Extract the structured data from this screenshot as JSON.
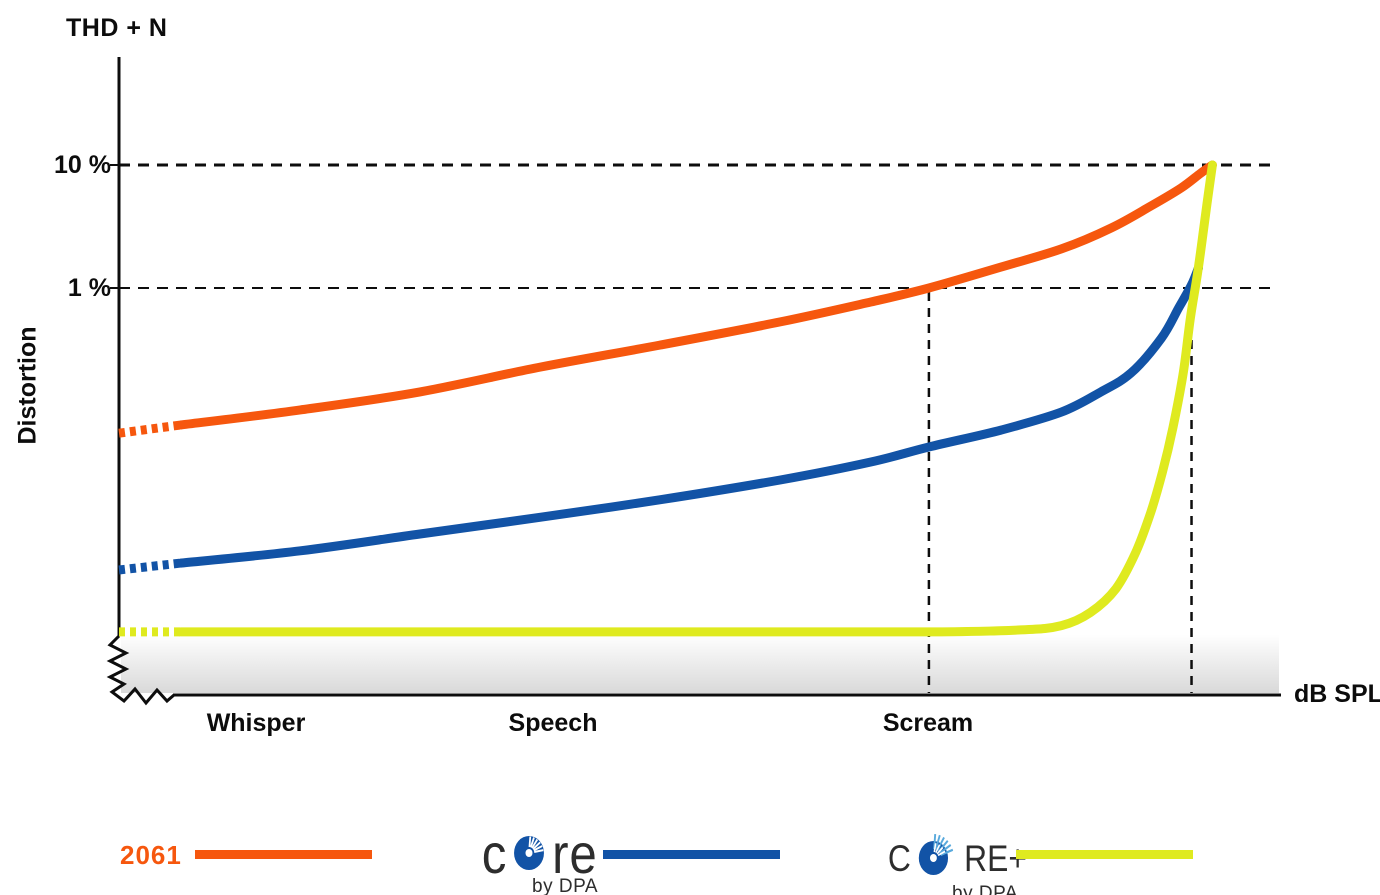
{
  "chart_data": {
    "type": "line",
    "title": "THD + N",
    "ylabel": "Distortion",
    "xlabel": "dB SPL",
    "y_axis": {
      "scale": "log",
      "unit": "%",
      "gridlines": [
        {
          "label": "10 %",
          "value": 10
        },
        {
          "label": "1 %",
          "value": 1
        }
      ]
    },
    "x_axis": {
      "labels": [
        "Whisper",
        "Speech",
        "Scream"
      ],
      "label_x_pct": [
        11.8,
        37.4,
        69.7
      ]
    },
    "reference_verticals": [
      {
        "x_pct": 69.7,
        "from_value": 1
      },
      {
        "x_pct": 92.3,
        "from_value": 1
      }
    ],
    "series": [
      {
        "name": "2061",
        "color": "#F6570E",
        "dashed_lead_in": true,
        "points": [
          [
            0,
            0.066
          ],
          [
            5.3,
            0.077
          ],
          [
            15.6,
            0.102
          ],
          [
            25.9,
            0.143
          ],
          [
            36.3,
            0.228
          ],
          [
            46.6,
            0.344
          ],
          [
            56.9,
            0.53
          ],
          [
            64.7,
            0.77
          ],
          [
            69.7,
            1.0
          ],
          [
            75.9,
            1.48
          ],
          [
            81.1,
            2.08
          ],
          [
            85.4,
            3.08
          ],
          [
            88.8,
            4.64
          ],
          [
            91.4,
            6.5
          ],
          [
            93.1,
            8.6
          ],
          [
            94.1,
            10
          ]
        ]
      },
      {
        "name": "CORE by DPA",
        "color": "#1253A6",
        "dashed_lead_in": true,
        "points": [
          [
            0,
            0.0051
          ],
          [
            5.3,
            0.0058
          ],
          [
            15.6,
            0.0073
          ],
          [
            25.9,
            0.01
          ],
          [
            36.3,
            0.0137
          ],
          [
            46.6,
            0.019
          ],
          [
            56.9,
            0.0275
          ],
          [
            64.7,
            0.0385
          ],
          [
            69.7,
            0.051
          ],
          [
            75.9,
            0.07
          ],
          [
            81.1,
            0.098
          ],
          [
            84.5,
            0.143
          ],
          [
            87.1,
            0.204
          ],
          [
            89.7,
            0.39
          ],
          [
            91.2,
            0.69
          ],
          [
            92.3,
            1.06
          ],
          [
            92.9,
            1.46
          ]
        ]
      },
      {
        "name": "CORE+ by DPA",
        "color": "#DFEA1F",
        "dashed_lead_in": true,
        "points": [
          [
            0,
            0.0016
          ],
          [
            5.3,
            0.0016
          ],
          [
            24.2,
            0.0016
          ],
          [
            50,
            0.0016
          ],
          [
            69.7,
            0.0016
          ],
          [
            77.6,
            0.00166
          ],
          [
            81.1,
            0.0018
          ],
          [
            83.6,
            0.0023
          ],
          [
            85.8,
            0.0036
          ],
          [
            87.5,
            0.0071
          ],
          [
            88.8,
            0.0151
          ],
          [
            89.8,
            0.032
          ],
          [
            90.7,
            0.073
          ],
          [
            91.6,
            0.208
          ],
          [
            92.2,
            0.57
          ],
          [
            92.8,
            1.28
          ],
          [
            93.3,
            2.8
          ],
          [
            93.7,
            5.4
          ],
          [
            94.1,
            10
          ]
        ]
      }
    ]
  },
  "legend": {
    "item_2061": {
      "label": "2061",
      "color": "#F6570E"
    },
    "item_core": {
      "name": "CORE by DPA",
      "prefix": "c",
      "suffix": "re",
      "byline": "by DPA",
      "color": "#1253A6",
      "disc_color": "#1253A6",
      "ray_color": "#ffffff"
    },
    "item_coreplus": {
      "name": "CORE+ by DPA",
      "prefix": "C",
      "suffix": "RE+",
      "byline": "by DPA",
      "color": "#DFEA1F",
      "disc_color": "#1253A6",
      "ray_color": "#58A9DC"
    }
  }
}
